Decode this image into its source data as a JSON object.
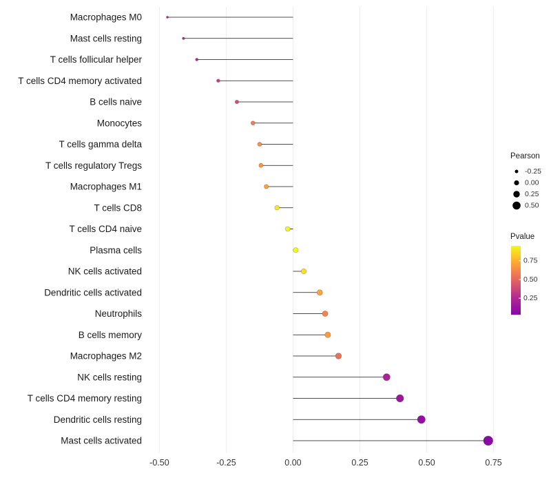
{
  "chart_data": {
    "type": "scatter",
    "subtype": "lollipop",
    "title": "",
    "xlabel": "",
    "ylabel": "",
    "grid": "vertical-light",
    "xlim": [
      -0.55,
      0.8
    ],
    "x_ticks": [
      -0.5,
      -0.25,
      0.0,
      0.25,
      0.5,
      0.75
    ],
    "x_tick_labels": [
      "-0.50",
      "-0.25",
      "0.00",
      "0.25",
      "0.50",
      "0.75"
    ],
    "points": [
      {
        "label": "Macrophages M0",
        "pearson": -0.47,
        "pvalue": 0.16,
        "color": "#a82296"
      },
      {
        "label": "Mast cells resting",
        "pearson": -0.41,
        "pvalue": 0.2,
        "color": "#b12a90"
      },
      {
        "label": "T cells follicular helper",
        "pearson": -0.36,
        "pvalue": 0.21,
        "color": "#b22b8f"
      },
      {
        "label": "T cells CD4 memory activated",
        "pearson": -0.28,
        "pvalue": 0.31,
        "color": "#c73e7c"
      },
      {
        "label": "B cells naive",
        "pearson": -0.21,
        "pvalue": 0.36,
        "color": "#d14e72"
      },
      {
        "label": "Monocytes",
        "pearson": -0.15,
        "pvalue": 0.55,
        "color": "#f0804f"
      },
      {
        "label": "T cells gamma delta",
        "pearson": -0.125,
        "pvalue": 0.6,
        "color": "#f79044"
      },
      {
        "label": "T cells regulatory  Tregs",
        "pearson": -0.12,
        "pvalue": 0.61,
        "color": "#f8953f"
      },
      {
        "label": "Macrophages M1",
        "pearson": -0.1,
        "pvalue": 0.65,
        "color": "#fba238"
      },
      {
        "label": "T cells CD8",
        "pearson": -0.06,
        "pvalue": 0.88,
        "color": "#f5e926"
      },
      {
        "label": "T cells CD4 naive",
        "pearson": -0.02,
        "pvalue": 0.93,
        "color": "#f1f722"
      },
      {
        "label": "Plasma cells",
        "pearson": 0.01,
        "pvalue": 0.95,
        "color": "#f0f921"
      },
      {
        "label": "NK cells activated",
        "pearson": 0.04,
        "pvalue": 0.85,
        "color": "#fbdf25"
      },
      {
        "label": "Dendritic cells activated",
        "pearson": 0.1,
        "pvalue": 0.67,
        "color": "#fca636"
      },
      {
        "label": "Neutrophils",
        "pearson": 0.12,
        "pvalue": 0.56,
        "color": "#f2844b"
      },
      {
        "label": "B cells memory",
        "pearson": 0.13,
        "pvalue": 0.63,
        "color": "#fa9b3d"
      },
      {
        "label": "Macrophages M2",
        "pearson": 0.17,
        "pvalue": 0.5,
        "color": "#e97257"
      },
      {
        "label": "NK cells resting",
        "pearson": 0.35,
        "pvalue": 0.17,
        "color": "#aa2395"
      },
      {
        "label": "T cells CD4 memory resting",
        "pearson": 0.4,
        "pvalue": 0.12,
        "color": "#9c179e"
      },
      {
        "label": "Dendritic cells resting",
        "pearson": 0.48,
        "pvalue": 0.08,
        "color": "#920fa3"
      },
      {
        "label": "Mast cells activated",
        "pearson": 0.73,
        "pvalue": 0.05,
        "color": "#8a09a5"
      }
    ],
    "legend_pearson": {
      "title": "Pearson",
      "values": [
        -0.25,
        0.0,
        0.25,
        0.5
      ],
      "labels": [
        "-0.25",
        "0.00",
        "0.25",
        "0.50"
      ],
      "dot_color": "#000000"
    },
    "legend_pvalue": {
      "title": "Pvalue",
      "ticks": [
        0.75,
        0.5,
        0.25
      ],
      "tick_labels": [
        "0.75",
        "0.50",
        "0.25"
      ],
      "domain": [
        0.03,
        0.95
      ],
      "gradient": [
        "#f0f921",
        "#fcce25",
        "#fca636",
        "#f1834c",
        "#e16462",
        "#cc4778",
        "#b12a90",
        "#9c179e",
        "#8606a6"
      ]
    },
    "colors": {
      "stem": "#111111",
      "gridline": "#ededed",
      "axis_text": "#333333",
      "category_text": "#1a1a1a",
      "background": "#ffffff"
    }
  }
}
